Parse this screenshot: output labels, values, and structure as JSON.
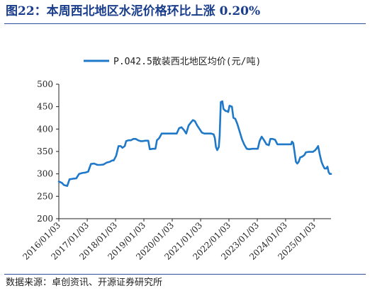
{
  "header": {
    "title": "图22：本周西北地区水泥价格环比上涨 0.20%"
  },
  "footer": {
    "source": "数据来源：卓创资讯、开源证券研究所"
  },
  "chart_data": {
    "type": "line",
    "legend_position": "top",
    "grid": false,
    "ylim": [
      200,
      500
    ],
    "yticks": [
      200,
      250,
      300,
      350,
      400,
      450,
      500
    ],
    "xlim": [
      "2016/01/03",
      "2025/08/10"
    ],
    "xticks": [
      "2016/01/03",
      "2017/01/03",
      "2018/01/03",
      "2019/01/03",
      "2020/01/03",
      "2021/01/03",
      "2022/01/03",
      "2023/01/03",
      "2024/01/03",
      "2025/01/03"
    ],
    "xlabel": "",
    "ylabel": "",
    "series": [
      {
        "name": "P.O42.5散装西北地区均价(元/吨)",
        "color": "#1f78c8",
        "points": [
          [
            "2016/01/03",
            283
          ],
          [
            "2016/02/10",
            280
          ],
          [
            "2016/03/10",
            275
          ],
          [
            "2016/04/20",
            273
          ],
          [
            "2016/05/20",
            288
          ],
          [
            "2016/07/01",
            289
          ],
          [
            "2016/08/15",
            290
          ],
          [
            "2016/09/20",
            300
          ],
          [
            "2016/11/01",
            302
          ],
          [
            "2016/12/10",
            303
          ],
          [
            "2017/01/15",
            305
          ],
          [
            "2017/02/20",
            322
          ],
          [
            "2017/04/01",
            323
          ],
          [
            "2017/05/15",
            320
          ],
          [
            "2017/06/20",
            320
          ],
          [
            "2017/08/01",
            321
          ],
          [
            "2017/09/10",
            325
          ],
          [
            "2017/10/20",
            327
          ],
          [
            "2017/11/20",
            330
          ],
          [
            "2017/12/10",
            330
          ],
          [
            "2018/01/10",
            340
          ],
          [
            "2018/02/10",
            362
          ],
          [
            "2018/03/10",
            362
          ],
          [
            "2018/04/01",
            358
          ],
          [
            "2018/05/01",
            362
          ],
          [
            "2018/05/20",
            373
          ],
          [
            "2018/06/20",
            375
          ],
          [
            "2018/07/20",
            375
          ],
          [
            "2018/08/20",
            378
          ],
          [
            "2018/09/20",
            378
          ],
          [
            "2018/10/20",
            375
          ],
          [
            "2018/11/20",
            373
          ],
          [
            "2018/12/20",
            373
          ],
          [
            "2019/01/20",
            374
          ],
          [
            "2019/03/01",
            374
          ],
          [
            "2019/03/20",
            355
          ],
          [
            "2019/05/01",
            356
          ],
          [
            "2019/06/01",
            356
          ],
          [
            "2019/06/20",
            375
          ],
          [
            "2019/07/20",
            380
          ],
          [
            "2019/08/20",
            390
          ],
          [
            "2019/09/20",
            390
          ],
          [
            "2019/11/01",
            390
          ],
          [
            "2019/12/01",
            390
          ],
          [
            "2020/01/01",
            390
          ],
          [
            "2020/02/01",
            390
          ],
          [
            "2020/03/01",
            390
          ],
          [
            "2020/04/01",
            402
          ],
          [
            "2020/05/01",
            404
          ],
          [
            "2020/06/01",
            398
          ],
          [
            "2020/07/01",
            390
          ],
          [
            "2020/08/01",
            408
          ],
          [
            "2020/09/01",
            415
          ],
          [
            "2020/09/25",
            420
          ],
          [
            "2020/10/20",
            418
          ],
          [
            "2020/11/20",
            408
          ],
          [
            "2020/12/20",
            400
          ],
          [
            "2021/01/20",
            392
          ],
          [
            "2021/02/20",
            390
          ],
          [
            "2021/03/20",
            390
          ],
          [
            "2021/04/20",
            390
          ],
          [
            "2021/05/20",
            390
          ],
          [
            "2021/06/20",
            388
          ],
          [
            "2021/07/05",
            380
          ],
          [
            "2021/07/20",
            360
          ],
          [
            "2021/08/05",
            353
          ],
          [
            "2021/08/25",
            360
          ],
          [
            "2021/09/05",
            385
          ],
          [
            "2021/09/20",
            460
          ],
          [
            "2021/10/10",
            462
          ],
          [
            "2021/10/25",
            445
          ],
          [
            "2021/11/10",
            442
          ],
          [
            "2021/11/25",
            440
          ],
          [
            "2021/12/10",
            440
          ],
          [
            "2021/12/25",
            438
          ],
          [
            "2022/01/10",
            452
          ],
          [
            "2022/02/10",
            450
          ],
          [
            "2022/03/01",
            425
          ],
          [
            "2022/03/25",
            423
          ],
          [
            "2022/04/20",
            412
          ],
          [
            "2022/05/20",
            395
          ],
          [
            "2022/06/20",
            377
          ],
          [
            "2022/07/20",
            365
          ],
          [
            "2022/08/20",
            356
          ],
          [
            "2022/09/20",
            355
          ],
          [
            "2022/11/01",
            356
          ],
          [
            "2022/12/01",
            356
          ],
          [
            "2022/12/20",
            356
          ],
          [
            "2023/01/10",
            356
          ],
          [
            "2023/02/01",
            373
          ],
          [
            "2023/03/01",
            383
          ],
          [
            "2023/04/01",
            375
          ],
          [
            "2023/05/01",
            366
          ],
          [
            "2023/06/01",
            364
          ],
          [
            "2023/06/20",
            378
          ],
          [
            "2023/07/20",
            378
          ],
          [
            "2023/08/20",
            376
          ],
          [
            "2023/09/20",
            366
          ],
          [
            "2023/10/20",
            366
          ],
          [
            "2023/11/20",
            366
          ],
          [
            "2023/12/20",
            366
          ],
          [
            "2024/01/10",
            366
          ],
          [
            "2024/02/10",
            366
          ],
          [
            "2024/03/01",
            366
          ],
          [
            "2024/03/15",
            366
          ],
          [
            "2024/03/25",
            372
          ],
          [
            "2024/04/10",
            369
          ],
          [
            "2024/05/01",
            344
          ],
          [
            "2024/05/15",
            327
          ],
          [
            "2024/06/01",
            323
          ],
          [
            "2024/06/20",
            327
          ],
          [
            "2024/07/10",
            337
          ],
          [
            "2024/08/01",
            338
          ],
          [
            "2024/09/01",
            342
          ],
          [
            "2024/09/20",
            348
          ],
          [
            "2024/10/20",
            349
          ],
          [
            "2024/11/20",
            349
          ],
          [
            "2024/12/20",
            349
          ],
          [
            "2025/01/20",
            353
          ],
          [
            "2025/02/10",
            358
          ],
          [
            "2025/02/25",
            362
          ],
          [
            "2025/03/20",
            342
          ],
          [
            "2025/04/10",
            327
          ],
          [
            "2025/05/01",
            318
          ],
          [
            "2025/05/20",
            312
          ],
          [
            "2025/06/10",
            312
          ],
          [
            "2025/06/25",
            316
          ],
          [
            "2025/07/10",
            304
          ],
          [
            "2025/07/25",
            300
          ],
          [
            "2025/08/10",
            300
          ]
        ]
      }
    ]
  }
}
